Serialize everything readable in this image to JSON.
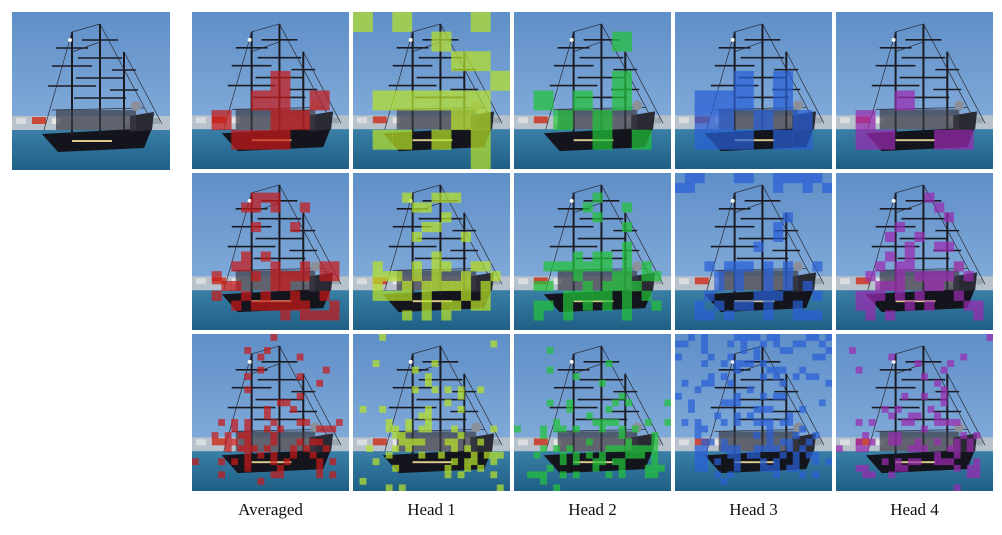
{
  "figure": {
    "original_image": {
      "label": "input-ship-photo"
    },
    "columns": [
      {
        "label": "Averaged",
        "color": "#c61a1a"
      },
      {
        "label": "Head 1",
        "color": "#b5e02a"
      },
      {
        "label": "Head 2",
        "color": "#22c23a"
      },
      {
        "label": "Head 3",
        "color": "#2a5fd6"
      },
      {
        "label": "Head 4",
        "color": "#9a2bb0"
      }
    ],
    "rows": 3
  }
}
